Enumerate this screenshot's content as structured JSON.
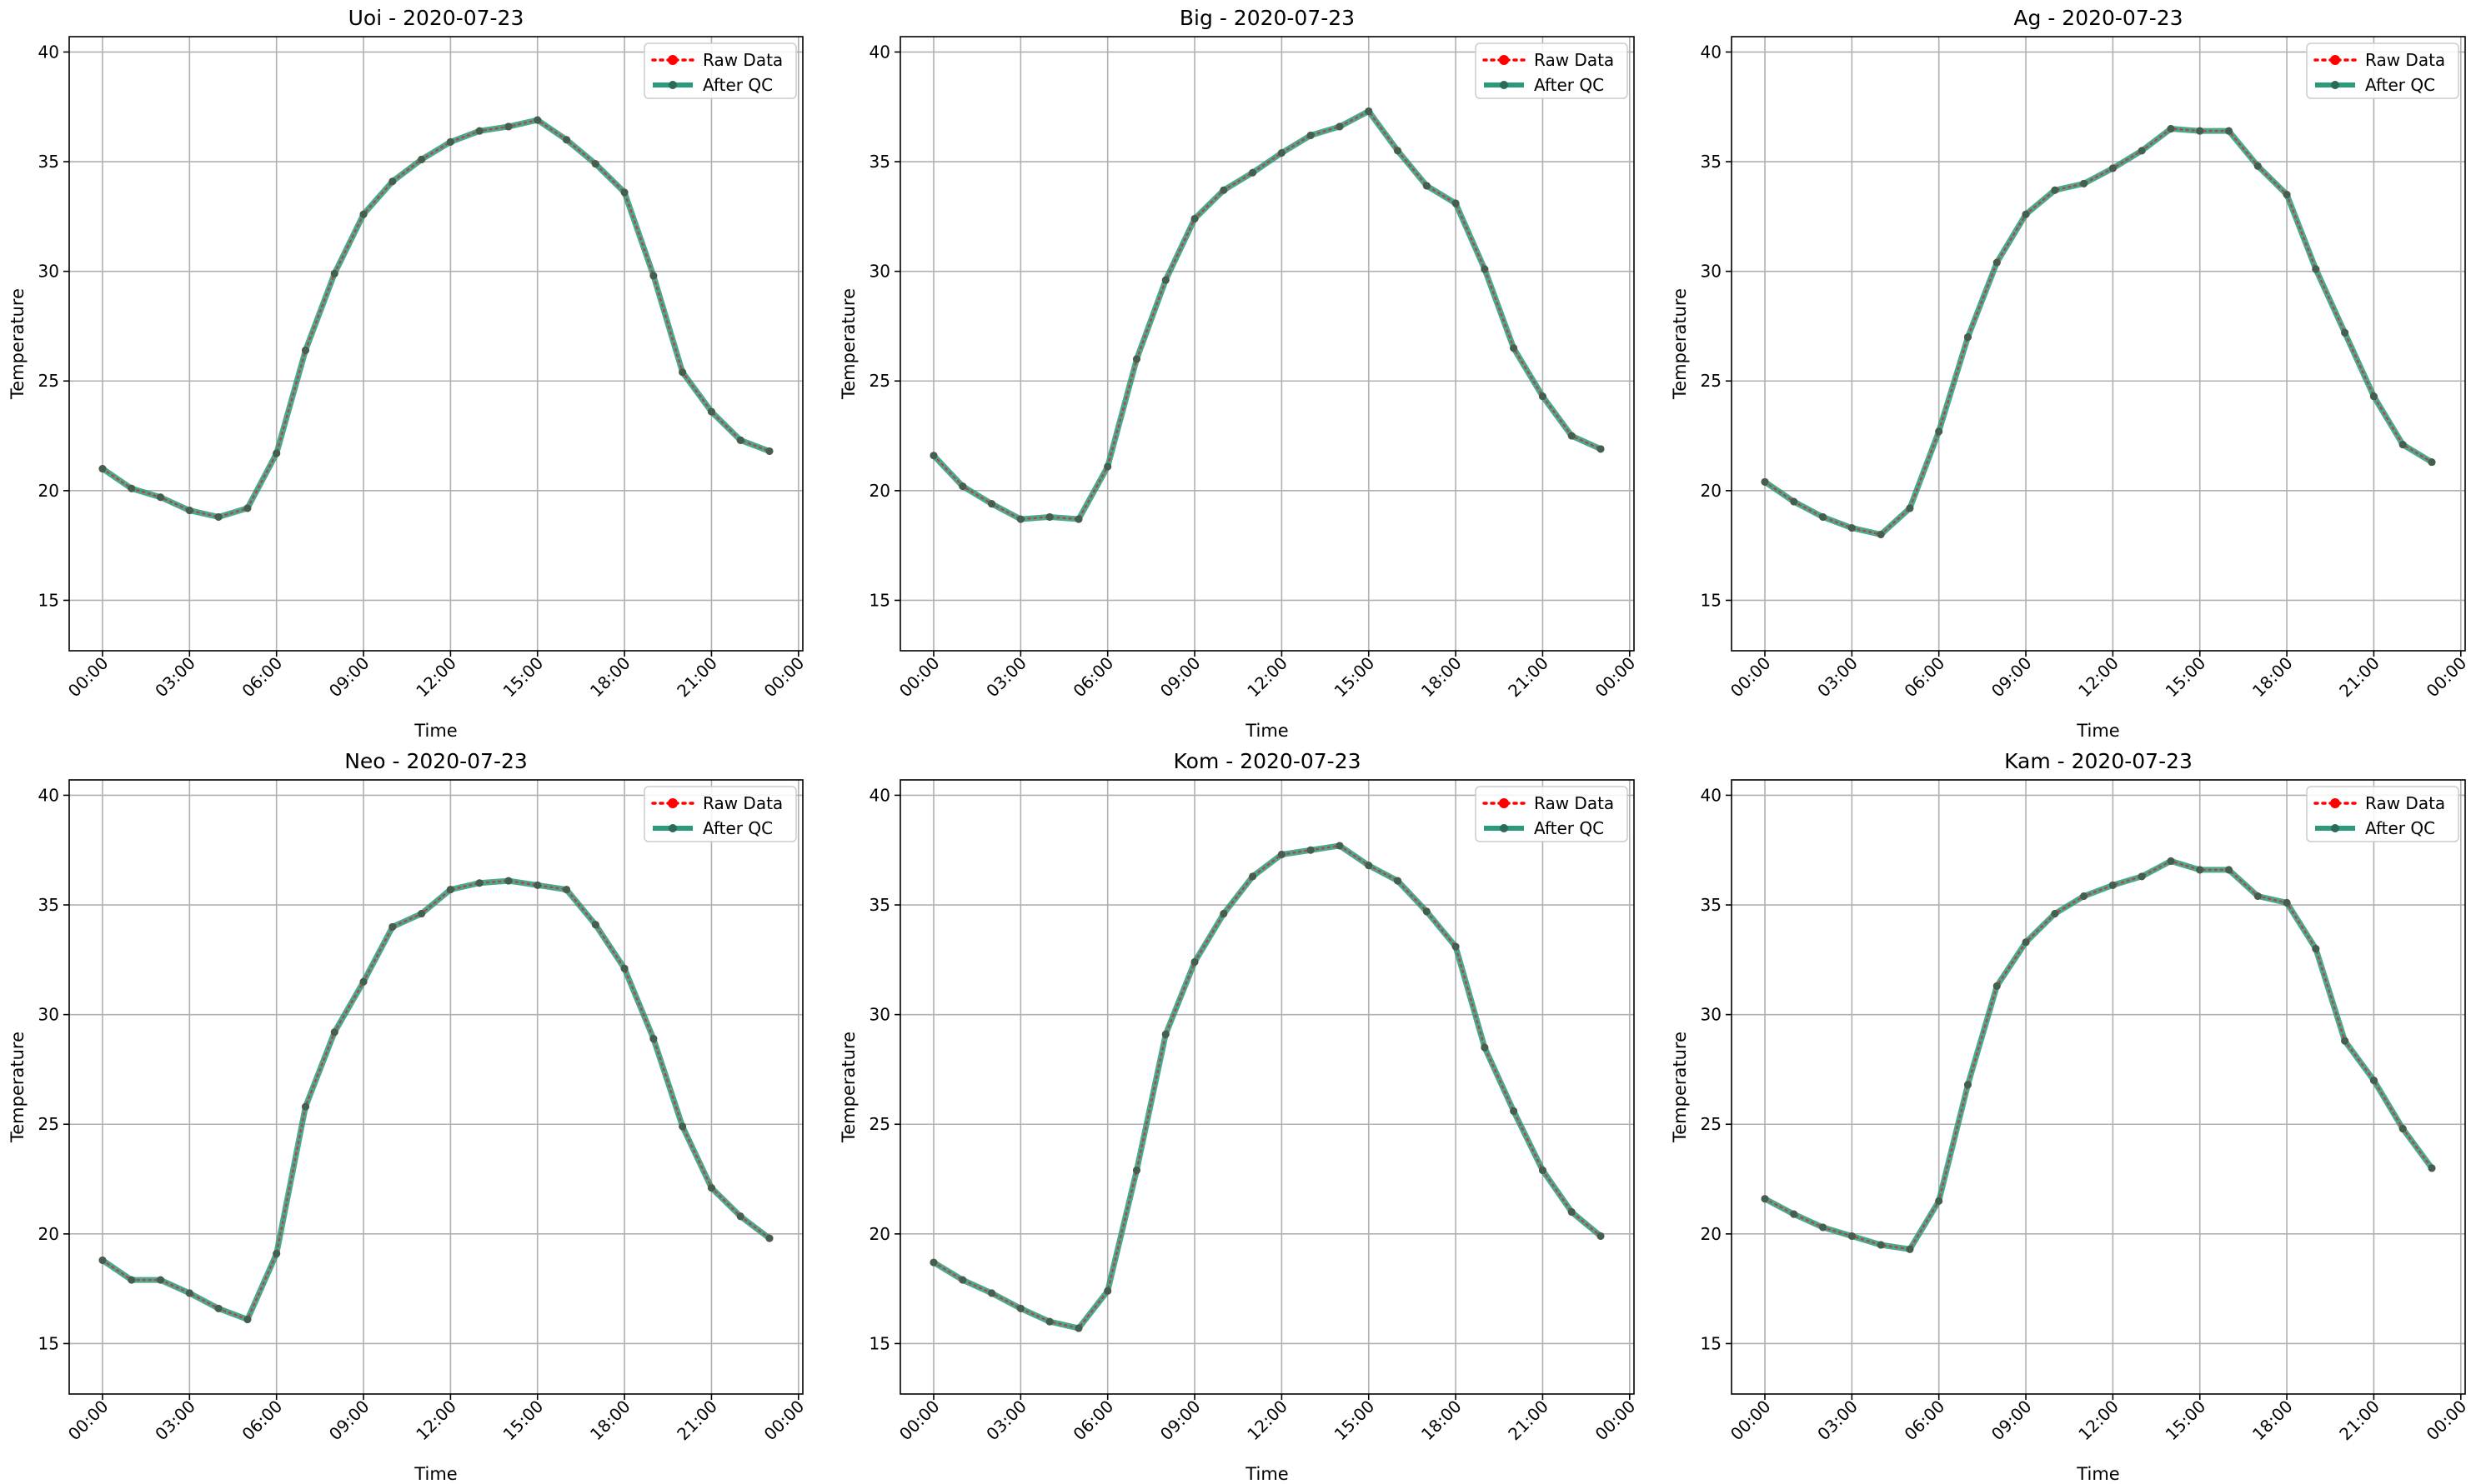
{
  "chart_data": [
    {
      "type": "line",
      "title": "Uoi - 2020-07-23",
      "xlabel": "Time",
      "ylabel": "Temperature",
      "x_ticks": [
        "00:00",
        "03:00",
        "06:00",
        "09:00",
        "12:00",
        "15:00",
        "18:00",
        "21:00",
        "00:00"
      ],
      "y_ticks": [
        15,
        20,
        25,
        30,
        35,
        40
      ],
      "xlim_hours": [
        -1.15,
        24.15
      ],
      "ylim": [
        12.7,
        40.7
      ],
      "grid": true,
      "legend_position": "top-right",
      "x_hours": [
        0,
        1,
        2,
        3,
        4,
        5,
        6,
        7,
        8,
        9,
        10,
        11,
        12,
        13,
        14,
        15,
        16,
        17,
        18,
        19,
        20,
        21,
        22,
        23
      ],
      "series": [
        {
          "name": "Raw Data",
          "color": "#ff0000",
          "style": "dotted-markers",
          "values": [
            21.0,
            20.1,
            19.7,
            19.1,
            18.8,
            19.2,
            21.7,
            26.4,
            29.9,
            32.6,
            34.1,
            35.1,
            35.9,
            36.4,
            36.6,
            36.9,
            36.0,
            34.9,
            33.6,
            29.8,
            25.4,
            23.6,
            22.3,
            21.8
          ]
        },
        {
          "name": "After QC",
          "color": "#2a9a7c",
          "style": "solid-markers",
          "values": [
            21.0,
            20.1,
            19.7,
            19.1,
            18.8,
            19.2,
            21.7,
            26.4,
            29.9,
            32.6,
            34.1,
            35.1,
            35.9,
            36.4,
            36.6,
            36.9,
            36.0,
            34.9,
            33.6,
            29.8,
            25.4,
            23.6,
            22.3,
            21.8
          ]
        }
      ]
    },
    {
      "type": "line",
      "title": "Big - 2020-07-23",
      "xlabel": "Time",
      "ylabel": "Temperature",
      "x_ticks": [
        "00:00",
        "03:00",
        "06:00",
        "09:00",
        "12:00",
        "15:00",
        "18:00",
        "21:00",
        "00:00"
      ],
      "y_ticks": [
        15,
        20,
        25,
        30,
        35,
        40
      ],
      "xlim_hours": [
        -1.15,
        24.15
      ],
      "ylim": [
        12.7,
        40.7
      ],
      "grid": true,
      "legend_position": "top-right",
      "x_hours": [
        0,
        1,
        2,
        3,
        4,
        5,
        6,
        7,
        8,
        9,
        10,
        11,
        12,
        13,
        14,
        15,
        16,
        17,
        18,
        19,
        20,
        21,
        22,
        23
      ],
      "series": [
        {
          "name": "Raw Data",
          "color": "#ff0000",
          "style": "dotted-markers",
          "values": [
            21.6,
            20.2,
            19.4,
            18.7,
            18.8,
            18.7,
            21.1,
            26.0,
            29.6,
            32.4,
            33.7,
            34.5,
            35.4,
            36.2,
            36.6,
            37.3,
            35.5,
            33.9,
            33.1,
            30.1,
            26.5,
            24.3,
            22.5,
            21.9
          ]
        },
        {
          "name": "After QC",
          "color": "#2a9a7c",
          "style": "solid-markers",
          "values": [
            21.6,
            20.2,
            19.4,
            18.7,
            18.8,
            18.7,
            21.1,
            26.0,
            29.6,
            32.4,
            33.7,
            34.5,
            35.4,
            36.2,
            36.6,
            37.3,
            35.5,
            33.9,
            33.1,
            30.1,
            26.5,
            24.3,
            22.5,
            21.9
          ]
        }
      ]
    },
    {
      "type": "line",
      "title": "Ag - 2020-07-23",
      "xlabel": "Time",
      "ylabel": "Temperature",
      "x_ticks": [
        "00:00",
        "03:00",
        "06:00",
        "09:00",
        "12:00",
        "15:00",
        "18:00",
        "21:00",
        "00:00"
      ],
      "y_ticks": [
        15,
        20,
        25,
        30,
        35,
        40
      ],
      "xlim_hours": [
        -1.15,
        24.15
      ],
      "ylim": [
        12.7,
        40.7
      ],
      "grid": true,
      "legend_position": "top-right",
      "x_hours": [
        0,
        1,
        2,
        3,
        4,
        5,
        6,
        7,
        8,
        9,
        10,
        11,
        12,
        13,
        14,
        15,
        16,
        17,
        18,
        19,
        20,
        21,
        22,
        23
      ],
      "series": [
        {
          "name": "Raw Data",
          "color": "#ff0000",
          "style": "dotted-markers",
          "values": [
            20.4,
            19.5,
            18.8,
            18.3,
            18.0,
            19.2,
            22.7,
            27.0,
            30.4,
            32.6,
            33.7,
            34.0,
            34.7,
            35.5,
            36.5,
            36.4,
            36.4,
            34.8,
            33.5,
            30.1,
            27.2,
            24.3,
            22.1,
            21.3
          ]
        },
        {
          "name": "After QC",
          "color": "#2a9a7c",
          "style": "solid-markers",
          "values": [
            20.4,
            19.5,
            18.8,
            18.3,
            18.0,
            19.2,
            22.7,
            27.0,
            30.4,
            32.6,
            33.7,
            34.0,
            34.7,
            35.5,
            36.5,
            36.4,
            36.4,
            34.8,
            33.5,
            30.1,
            27.2,
            24.3,
            22.1,
            21.3
          ]
        }
      ]
    },
    {
      "type": "line",
      "title": "Neo - 2020-07-23",
      "xlabel": "Time",
      "ylabel": "Temperature",
      "x_ticks": [
        "00:00",
        "03:00",
        "06:00",
        "09:00",
        "12:00",
        "15:00",
        "18:00",
        "21:00",
        "00:00"
      ],
      "y_ticks": [
        15,
        20,
        25,
        30,
        35,
        40
      ],
      "xlim_hours": [
        -1.15,
        24.15
      ],
      "ylim": [
        12.7,
        40.7
      ],
      "grid": true,
      "legend_position": "top-right",
      "x_hours": [
        0,
        1,
        2,
        3,
        4,
        5,
        6,
        7,
        8,
        9,
        10,
        11,
        12,
        13,
        14,
        15,
        16,
        17,
        18,
        19,
        20,
        21,
        22,
        23
      ],
      "series": [
        {
          "name": "Raw Data",
          "color": "#ff0000",
          "style": "dotted-markers",
          "values": [
            18.8,
            17.9,
            17.9,
            17.3,
            16.6,
            16.1,
            19.1,
            25.8,
            29.2,
            31.5,
            34.0,
            34.6,
            35.7,
            36.0,
            36.1,
            35.9,
            35.7,
            34.1,
            32.1,
            28.9,
            24.9,
            22.1,
            20.8,
            19.8
          ]
        },
        {
          "name": "After QC",
          "color": "#2a9a7c",
          "style": "solid-markers",
          "values": [
            18.8,
            17.9,
            17.9,
            17.3,
            16.6,
            16.1,
            19.1,
            25.8,
            29.2,
            31.5,
            34.0,
            34.6,
            35.7,
            36.0,
            36.1,
            35.9,
            35.7,
            34.1,
            32.1,
            28.9,
            24.9,
            22.1,
            20.8,
            19.8
          ]
        }
      ]
    },
    {
      "type": "line",
      "title": "Kom - 2020-07-23",
      "xlabel": "Time",
      "ylabel": "Temperature",
      "x_ticks": [
        "00:00",
        "03:00",
        "06:00",
        "09:00",
        "12:00",
        "15:00",
        "18:00",
        "21:00",
        "00:00"
      ],
      "y_ticks": [
        15,
        20,
        25,
        30,
        35,
        40
      ],
      "xlim_hours": [
        -1.15,
        24.15
      ],
      "ylim": [
        12.7,
        40.7
      ],
      "grid": true,
      "legend_position": "top-right",
      "x_hours": [
        0,
        1,
        2,
        3,
        4,
        5,
        6,
        7,
        8,
        9,
        10,
        11,
        12,
        13,
        14,
        15,
        16,
        17,
        18,
        19,
        20,
        21,
        22,
        23
      ],
      "series": [
        {
          "name": "Raw Data",
          "color": "#ff0000",
          "style": "dotted-markers",
          "values": [
            18.7,
            17.9,
            17.3,
            16.6,
            16.0,
            15.7,
            17.4,
            22.9,
            29.1,
            32.4,
            34.6,
            36.3,
            37.3,
            37.5,
            37.7,
            36.8,
            36.1,
            34.7,
            33.1,
            28.5,
            25.6,
            22.9,
            21.0,
            19.9
          ]
        },
        {
          "name": "After QC",
          "color": "#2a9a7c",
          "style": "solid-markers",
          "values": [
            18.7,
            17.9,
            17.3,
            16.6,
            16.0,
            15.7,
            17.4,
            22.9,
            29.1,
            32.4,
            34.6,
            36.3,
            37.3,
            37.5,
            37.7,
            36.8,
            36.1,
            34.7,
            33.1,
            28.5,
            25.6,
            22.9,
            21.0,
            19.9
          ]
        }
      ]
    },
    {
      "type": "line",
      "title": "Kam - 2020-07-23",
      "xlabel": "Time",
      "ylabel": "Temperature",
      "x_ticks": [
        "00:00",
        "03:00",
        "06:00",
        "09:00",
        "12:00",
        "15:00",
        "18:00",
        "21:00",
        "00:00"
      ],
      "y_ticks": [
        15,
        20,
        25,
        30,
        35,
        40
      ],
      "xlim_hours": [
        -1.15,
        24.15
      ],
      "ylim": [
        12.7,
        40.7
      ],
      "grid": true,
      "legend_position": "top-right",
      "x_hours": [
        0,
        1,
        2,
        3,
        4,
        5,
        6,
        7,
        8,
        9,
        10,
        11,
        12,
        13,
        14,
        15,
        16,
        17,
        18,
        19,
        20,
        21,
        22,
        23
      ],
      "series": [
        {
          "name": "Raw Data",
          "color": "#ff0000",
          "style": "dotted-markers",
          "values": [
            21.6,
            20.9,
            20.3,
            19.9,
            19.5,
            19.3,
            21.5,
            26.8,
            31.3,
            33.3,
            34.6,
            35.4,
            35.9,
            36.3,
            37.0,
            36.6,
            36.6,
            35.4,
            35.1,
            33.0,
            28.8,
            27.0,
            24.8,
            23.0
          ]
        },
        {
          "name": "After QC",
          "color": "#2a9a7c",
          "style": "solid-markers",
          "values": [
            21.6,
            20.9,
            20.3,
            19.9,
            19.5,
            19.3,
            21.5,
            26.8,
            31.3,
            33.3,
            34.6,
            35.4,
            35.9,
            36.3,
            37.0,
            36.6,
            36.6,
            35.4,
            35.1,
            33.0,
            28.8,
            27.0,
            24.8,
            23.0
          ]
        }
      ]
    }
  ]
}
